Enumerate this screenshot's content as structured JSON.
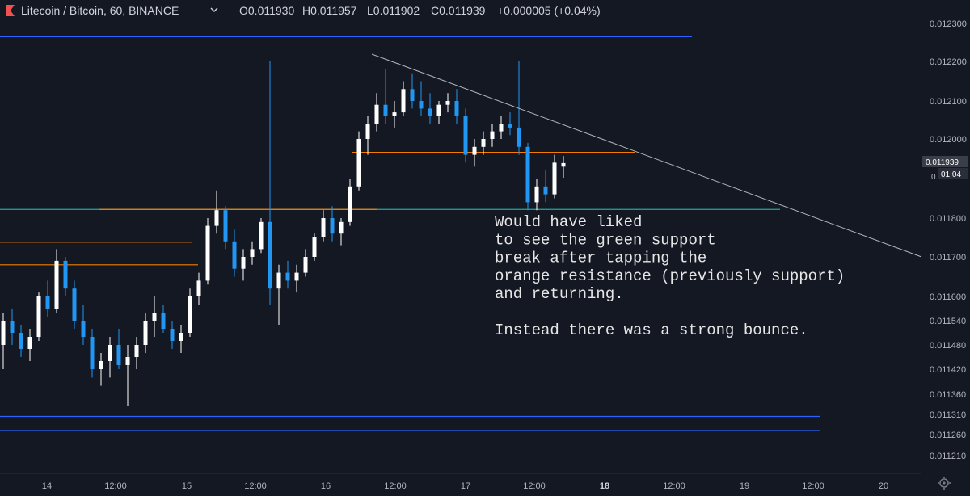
{
  "header": {
    "symbol": "Litecoin / Bitcoin, 60, BINANCE",
    "open": "O0.011930",
    "high": "H0.011957",
    "low": "L0.011902",
    "close": "C0.011939",
    "change": "+0.000005 (+0.04%)",
    "dropdown_icon": "chevron-down-icon",
    "symbol_icon": "exchange-flag-icon"
  },
  "price_tag": {
    "value": "0.011939",
    "countdown": "01:04",
    "partial_label": "0.01"
  },
  "colors": {
    "background": "#141823",
    "up_candle": "#ffffff",
    "down_candle": "#2196f3",
    "blue_line": "#2962ff",
    "orange_line": "#f57c00",
    "green_line": "#26a69a",
    "trendline": "#b2b5be",
    "symbol_icon": "#ef5350"
  },
  "annotation": {
    "lines": [
      "Would have liked",
      "to see the green support",
      "break after tapping the",
      "orange resistance (previously support)",
      "and returning.",
      "",
      "Instead there was a strong bounce."
    ]
  },
  "chart_data": {
    "type": "candlestick",
    "title": "Litecoin / Bitcoin, 60, BINANCE",
    "y_ticks": [
      "0.012300",
      "0.012200",
      "0.012100",
      "0.012000",
      "0.011800",
      "0.011700",
      "0.011600",
      "0.011540",
      "0.011480",
      "0.011420",
      "0.011360",
      "0.011310",
      "0.011260",
      "0.011210"
    ],
    "x_ticks": [
      {
        "label": "14",
        "bold": false
      },
      {
        "label": "12:00",
        "bold": false
      },
      {
        "label": "15",
        "bold": false
      },
      {
        "label": "12:00",
        "bold": false
      },
      {
        "label": "16",
        "bold": false
      },
      {
        "label": "12:00",
        "bold": false
      },
      {
        "label": "17",
        "bold": false
      },
      {
        "label": "12:00",
        "bold": false
      },
      {
        "label": "18",
        "bold": true
      },
      {
        "label": "12:00",
        "bold": false
      },
      {
        "label": "19",
        "bold": false
      },
      {
        "label": "12:00",
        "bold": false
      },
      {
        "label": "20",
        "bold": false
      }
    ],
    "grid": false,
    "last_price": 0.011939,
    "horizontal_levels": [
      {
        "kind": "resistance",
        "color": "blue",
        "price": 0.012265
      },
      {
        "kind": "resistance",
        "color": "orange",
        "price": 0.011966
      },
      {
        "kind": "support",
        "color": "green",
        "price": 0.011822
      },
      {
        "kind": "support",
        "color": "orange",
        "price": 0.011738
      },
      {
        "kind": "support",
        "color": "orange",
        "price": 0.01168
      },
      {
        "kind": "support",
        "color": "blue",
        "price": 0.011305
      },
      {
        "kind": "support",
        "color": "blue",
        "price": 0.01127
      }
    ],
    "trendline": {
      "from_time": "16 ~04:00",
      "from_price": 0.012215,
      "to_time": "19 ~22:00",
      "to_price": 0.0117
    },
    "candles": [
      {
        "o": 0.01148,
        "h": 0.01156,
        "l": 0.01142,
        "c": 0.01154
      },
      {
        "o": 0.01154,
        "h": 0.01157,
        "l": 0.01148,
        "c": 0.01151
      },
      {
        "o": 0.01151,
        "h": 0.01153,
        "l": 0.01145,
        "c": 0.01147
      },
      {
        "o": 0.01147,
        "h": 0.01152,
        "l": 0.01144,
        "c": 0.0115
      },
      {
        "o": 0.0115,
        "h": 0.01161,
        "l": 0.01149,
        "c": 0.0116
      },
      {
        "o": 0.0116,
        "h": 0.01164,
        "l": 0.01155,
        "c": 0.01157
      },
      {
        "o": 0.01157,
        "h": 0.01172,
        "l": 0.01156,
        "c": 0.01169
      },
      {
        "o": 0.01169,
        "h": 0.0117,
        "l": 0.0116,
        "c": 0.01162
      },
      {
        "o": 0.01162,
        "h": 0.01164,
        "l": 0.01152,
        "c": 0.01154
      },
      {
        "o": 0.01154,
        "h": 0.01158,
        "l": 0.01148,
        "c": 0.0115
      },
      {
        "o": 0.0115,
        "h": 0.01152,
        "l": 0.0114,
        "c": 0.01142
      },
      {
        "o": 0.01142,
        "h": 0.01146,
        "l": 0.01138,
        "c": 0.01144
      },
      {
        "o": 0.01144,
        "h": 0.0115,
        "l": 0.0114,
        "c": 0.01148
      },
      {
        "o": 0.01148,
        "h": 0.01152,
        "l": 0.01142,
        "c": 0.01143
      },
      {
        "o": 0.01143,
        "h": 0.01148,
        "l": 0.01133,
        "c": 0.01145
      },
      {
        "o": 0.01145,
        "h": 0.0115,
        "l": 0.01142,
        "c": 0.01148
      },
      {
        "o": 0.01148,
        "h": 0.01156,
        "l": 0.01146,
        "c": 0.01154
      },
      {
        "o": 0.01154,
        "h": 0.0116,
        "l": 0.0115,
        "c": 0.01156
      },
      {
        "o": 0.01156,
        "h": 0.01158,
        "l": 0.01151,
        "c": 0.01152
      },
      {
        "o": 0.01152,
        "h": 0.01154,
        "l": 0.01147,
        "c": 0.01149
      },
      {
        "o": 0.01149,
        "h": 0.01153,
        "l": 0.01146,
        "c": 0.01151
      },
      {
        "o": 0.01151,
        "h": 0.01162,
        "l": 0.0115,
        "c": 0.0116
      },
      {
        "o": 0.0116,
        "h": 0.01166,
        "l": 0.01158,
        "c": 0.01164
      },
      {
        "o": 0.01164,
        "h": 0.0118,
        "l": 0.01163,
        "c": 0.01178
      },
      {
        "o": 0.01178,
        "h": 0.01187,
        "l": 0.01176,
        "c": 0.01182
      },
      {
        "o": 0.01182,
        "h": 0.01183,
        "l": 0.01172,
        "c": 0.01174
      },
      {
        "o": 0.01174,
        "h": 0.01177,
        "l": 0.01165,
        "c": 0.01167
      },
      {
        "o": 0.01167,
        "h": 0.01172,
        "l": 0.01164,
        "c": 0.0117
      },
      {
        "o": 0.0117,
        "h": 0.01174,
        "l": 0.01168,
        "c": 0.01172
      },
      {
        "o": 0.01172,
        "h": 0.0118,
        "l": 0.01171,
        "c": 0.01179
      },
      {
        "o": 0.01179,
        "h": 0.0122,
        "l": 0.01158,
        "c": 0.01162
      },
      {
        "o": 0.01162,
        "h": 0.01168,
        "l": 0.01153,
        "c": 0.01166
      },
      {
        "o": 0.01166,
        "h": 0.01169,
        "l": 0.01162,
        "c": 0.01164
      },
      {
        "o": 0.01164,
        "h": 0.01168,
        "l": 0.01161,
        "c": 0.01166
      },
      {
        "o": 0.01166,
        "h": 0.01172,
        "l": 0.01165,
        "c": 0.0117
      },
      {
        "o": 0.0117,
        "h": 0.01176,
        "l": 0.01169,
        "c": 0.01175
      },
      {
        "o": 0.01175,
        "h": 0.01182,
        "l": 0.01174,
        "c": 0.0118
      },
      {
        "o": 0.0118,
        "h": 0.01183,
        "l": 0.01174,
        "c": 0.01176
      },
      {
        "o": 0.01176,
        "h": 0.0118,
        "l": 0.01173,
        "c": 0.01179
      },
      {
        "o": 0.01179,
        "h": 0.0119,
        "l": 0.01178,
        "c": 0.01188
      },
      {
        "o": 0.01188,
        "h": 0.01202,
        "l": 0.01187,
        "c": 0.012
      },
      {
        "o": 0.012,
        "h": 0.01206,
        "l": 0.01196,
        "c": 0.01204
      },
      {
        "o": 0.01204,
        "h": 0.01212,
        "l": 0.01202,
        "c": 0.01209
      },
      {
        "o": 0.01209,
        "h": 0.01218,
        "l": 0.01204,
        "c": 0.01206
      },
      {
        "o": 0.01206,
        "h": 0.0121,
        "l": 0.01203,
        "c": 0.01207
      },
      {
        "o": 0.01207,
        "h": 0.01215,
        "l": 0.01206,
        "c": 0.01213
      },
      {
        "o": 0.01213,
        "h": 0.01217,
        "l": 0.01208,
        "c": 0.0121
      },
      {
        "o": 0.0121,
        "h": 0.01215,
        "l": 0.01206,
        "c": 0.01208
      },
      {
        "o": 0.01208,
        "h": 0.01212,
        "l": 0.01204,
        "c": 0.01206
      },
      {
        "o": 0.01206,
        "h": 0.0121,
        "l": 0.01204,
        "c": 0.01209
      },
      {
        "o": 0.01209,
        "h": 0.01212,
        "l": 0.01207,
        "c": 0.0121
      },
      {
        "o": 0.0121,
        "h": 0.01213,
        "l": 0.01204,
        "c": 0.01206
      },
      {
        "o": 0.01206,
        "h": 0.01208,
        "l": 0.01194,
        "c": 0.01196
      },
      {
        "o": 0.01196,
        "h": 0.012,
        "l": 0.01193,
        "c": 0.01198
      },
      {
        "o": 0.01198,
        "h": 0.01202,
        "l": 0.01196,
        "c": 0.012
      },
      {
        "o": 0.012,
        "h": 0.01204,
        "l": 0.01198,
        "c": 0.01202
      },
      {
        "o": 0.01202,
        "h": 0.01206,
        "l": 0.012,
        "c": 0.01204
      },
      {
        "o": 0.01204,
        "h": 0.01207,
        "l": 0.01201,
        "c": 0.01203
      },
      {
        "o": 0.01203,
        "h": 0.0122,
        "l": 0.01196,
        "c": 0.01198
      },
      {
        "o": 0.01198,
        "h": 0.01199,
        "l": 0.01182,
        "c": 0.01184
      },
      {
        "o": 0.01184,
        "h": 0.0119,
        "l": 0.01182,
        "c": 0.01188
      },
      {
        "o": 0.01188,
        "h": 0.01192,
        "l": 0.01184,
        "c": 0.01186
      },
      {
        "o": 0.01186,
        "h": 0.01196,
        "l": 0.01185,
        "c": 0.01194
      },
      {
        "o": 0.01193,
        "h": 0.011957,
        "l": 0.011902,
        "c": 0.011939
      }
    ]
  }
}
